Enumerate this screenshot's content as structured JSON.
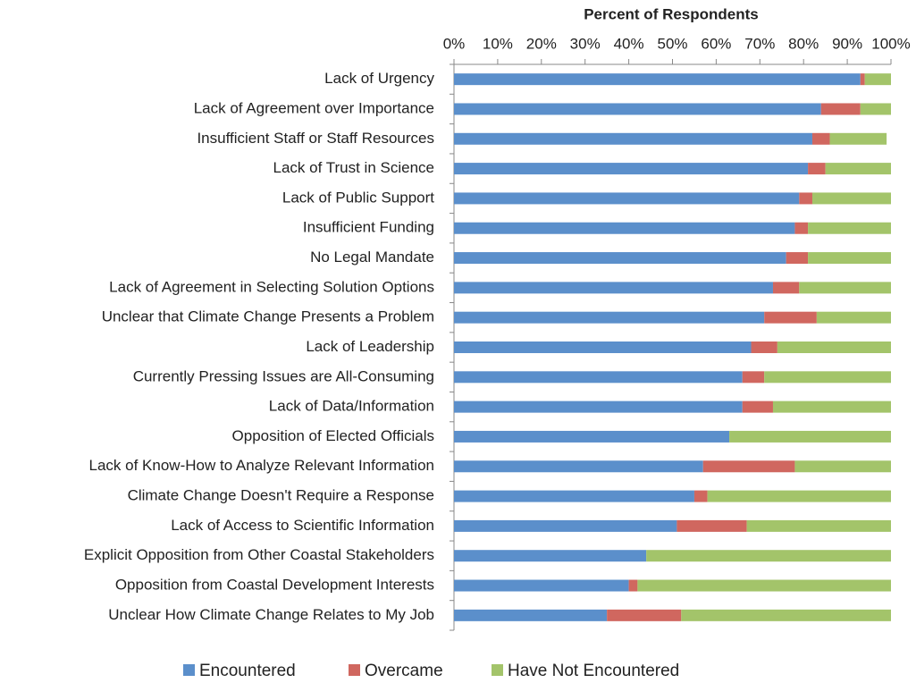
{
  "chart_data": {
    "type": "stacked_barh",
    "title": "Percent of Respondents",
    "categories": [
      "Lack of Urgency",
      "Lack of Agreement over Importance",
      "Insufficient Staff or Staff Resources",
      "Lack of Trust in Science",
      "Lack of Public Support",
      "Insufficient Funding",
      "No Legal Mandate",
      "Lack of Agreement in Selecting Solution Options",
      "Unclear that Climate Change Presents a Problem",
      "Lack of Leadership",
      "Currently Pressing Issues are All-Consuming",
      "Lack of Data/Information",
      "Opposition of Elected Officials",
      "Lack of Know-How to Analyze Relevant Information",
      "Climate Change Doesn't Require a Response",
      "Lack of Access to Scientific Information",
      "Explicit Opposition from Other Coastal Stakeholders",
      "Opposition from Coastal Development Interests",
      "Unclear How Climate Change Relates to My Job"
    ],
    "series": [
      {
        "name": "Encountered",
        "color": "#5b8fcb",
        "values": [
          93,
          84,
          82,
          81,
          79,
          78,
          76,
          73,
          71,
          68,
          66,
          66,
          63,
          57,
          55,
          51,
          44,
          40,
          35
        ]
      },
      {
        "name": "Overcame",
        "color": "#d0675f",
        "values": [
          1,
          9,
          4,
          4,
          3,
          3,
          5,
          6,
          12,
          6,
          5,
          7,
          0,
          21,
          3,
          16,
          0,
          2,
          17
        ]
      },
      {
        "name": "Have Not Encountered",
        "color": "#a3c46a",
        "values": [
          6,
          7,
          13,
          15,
          18,
          19,
          19,
          21,
          17,
          26,
          29,
          27,
          37,
          22,
          42,
          33,
          56,
          58,
          48
        ]
      }
    ],
    "xlim": [
      0,
      100
    ],
    "xticks": [
      {
        "value": 0,
        "label": "0%"
      },
      {
        "value": 10,
        "label": "10%"
      },
      {
        "value": 20,
        "label": "20%"
      },
      {
        "value": 30,
        "label": "30%"
      },
      {
        "value": 40,
        "label": "40%"
      },
      {
        "value": 50,
        "label": "50%"
      },
      {
        "value": 60,
        "label": "60%"
      },
      {
        "value": 70,
        "label": "70%"
      },
      {
        "value": 80,
        "label": "80%"
      },
      {
        "value": 90,
        "label": "90%"
      },
      {
        "value": 100,
        "label": "100%"
      }
    ],
    "legend": "bottom"
  }
}
